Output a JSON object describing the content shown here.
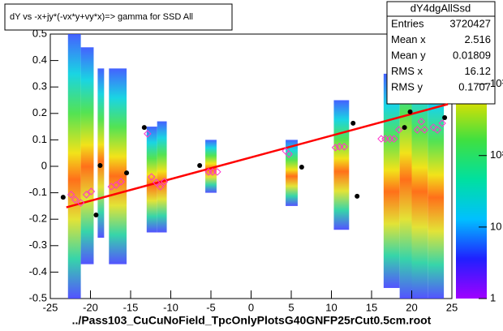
{
  "chart_data": {
    "type": "scatter",
    "title": "dY vs -x+jy*(-vx*y+vy*x)=> gamma for SSD All",
    "xlabel": "../Pass103_CuCuNoField_TpcOnlyPlotsG40GNFP25rCut0.5cm.root",
    "xlim": [
      -25,
      25
    ],
    "ylim": [
      -0.5,
      0.5
    ],
    "xticks": [
      -25,
      -20,
      -15,
      -10,
      -5,
      0,
      5,
      10,
      15,
      20,
      25
    ],
    "yticks": [
      -0.5,
      -0.4,
      -0.3,
      -0.2,
      -0.1,
      0,
      0.1,
      0.2,
      0.3,
      0.4,
      0.5
    ],
    "zlim": [
      1,
      5000
    ],
    "zlog": true,
    "zticks": [
      1,
      10,
      {
        "value": 100,
        "label": "10²"
      },
      {
        "value": 1000,
        "label": "10³"
      }
    ],
    "columns": {
      "x0": [
        -22.8,
        -21.2,
        -19.1,
        -17.7,
        -13,
        -11.7,
        -5.7,
        4.3,
        10.3,
        16.5,
        18.5,
        20,
        22
      ],
      "x1": [
        -21.2,
        -19.6,
        -18.3,
        -15.5,
        -11.7,
        -10.5,
        -4.3,
        5.8,
        12.2,
        18.5,
        20,
        22,
        24
      ],
      "y0": [
        -0.5,
        -0.37,
        -0.27,
        -0.37,
        -0.25,
        -0.25,
        -0.1,
        -0.15,
        -0.24,
        -0.46,
        -0.5,
        -0.5,
        -0.5
      ],
      "y1": [
        0.5,
        0.45,
        0.37,
        0.37,
        0.15,
        0.17,
        0.1,
        0.1,
        0.25,
        0.35,
        0.5,
        0.4,
        0.35
      ]
    },
    "series": [
      {
        "name": "profile",
        "color": "#000000",
        "x": [
          -23.4,
          -19.3,
          -18.8,
          -15.5,
          -13.3,
          -6.4,
          6.3,
          12.7,
          13.2,
          19.1,
          19.8,
          24.1
        ],
        "values": [
          -0.117,
          -0.184,
          0.003,
          -0.025,
          0.147,
          0.003,
          -0.003,
          0.163,
          -0.113,
          0.147,
          0.206,
          0.184
        ]
      },
      {
        "name": "diamonds",
        "color": "#ff33cc",
        "x": [
          -22.4,
          -21.9,
          -21.2,
          -20.5,
          -19.9,
          -17.4,
          -16.8,
          -16.2,
          -12.9,
          -12.4,
          -11.8,
          -11.3,
          -10.8,
          -5.3,
          -4.8,
          -4.2,
          4.3,
          4.7,
          10.5,
          11,
          11.6,
          16.2,
          16.7,
          17.3,
          17.8,
          18.4,
          20.7,
          21.2,
          21.6,
          22.7,
          23.2,
          23.8
        ],
        "values": [
          -0.107,
          -0.126,
          -0.138,
          -0.107,
          -0.095,
          -0.077,
          -0.071,
          -0.058,
          0.123,
          -0.04,
          -0.061,
          -0.077,
          -0.058,
          -0.021,
          -0.021,
          -0.021,
          0.058,
          0.046,
          0.071,
          0.074,
          0.074,
          0.104,
          0.104,
          0.104,
          0.104,
          0.138,
          0.138,
          0.169,
          0.138,
          0.147,
          0.138,
          0.163
        ]
      }
    ],
    "fit": {
      "color": "#ff0000",
      "x": [
        -23,
        24.5
      ],
      "values": [
        -0.155,
        0.235
      ]
    },
    "stats": {
      "title": "dY4dgAllSsd",
      "names": [
        "Entries",
        "Mean x",
        "Mean y",
        "RMS x",
        "RMS y"
      ],
      "values": [
        3720427,
        2.516,
        0.01809,
        16.12,
        0.1707
      ]
    }
  }
}
